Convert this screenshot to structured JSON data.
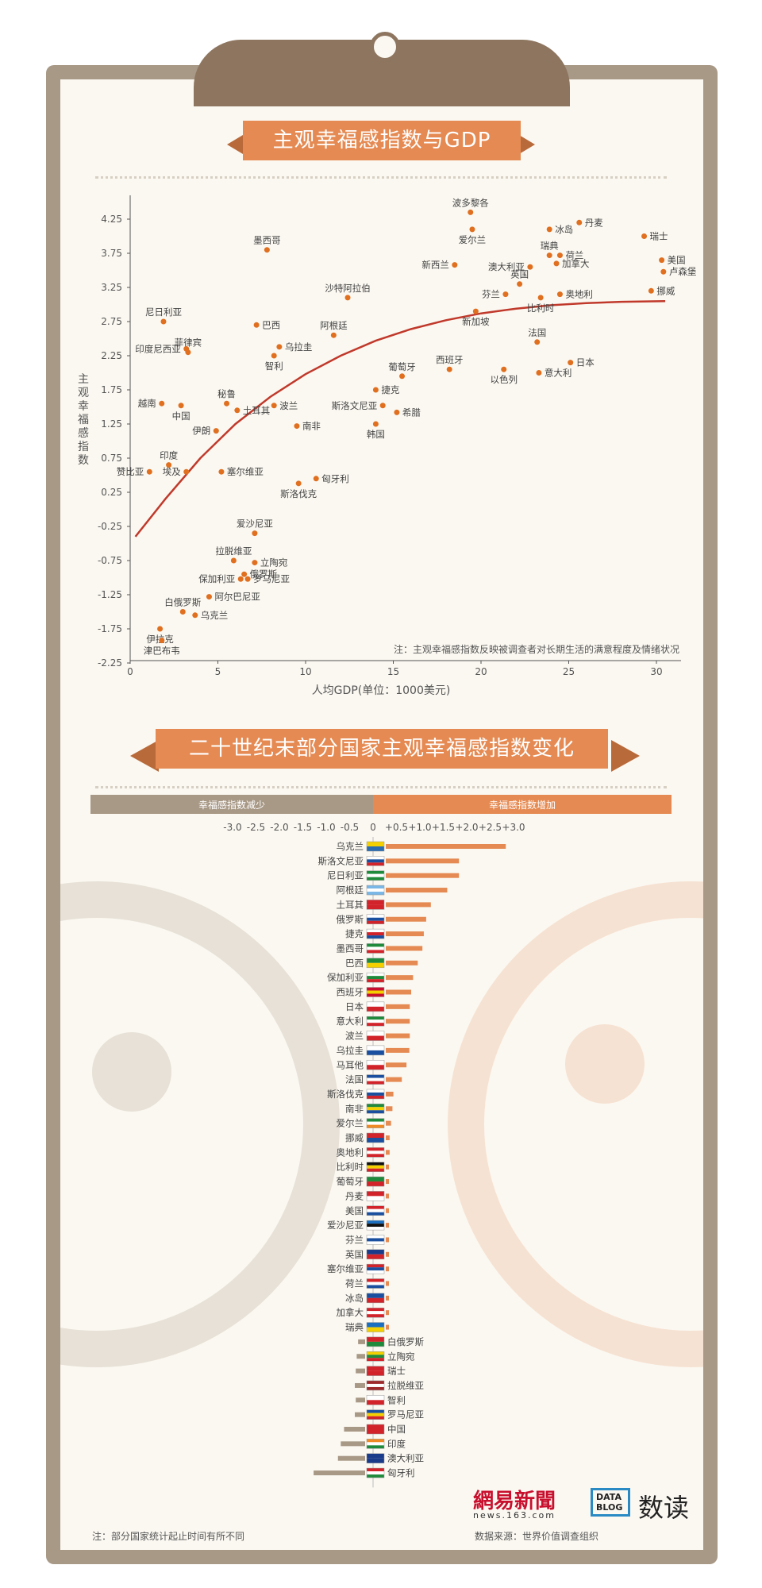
{
  "scatter_title": "主观幸福感指数与GDP",
  "bar_title": "二十世纪末部分国家主观幸福感指数变化",
  "colors": {
    "accent": "#e58a52",
    "point": "#e07020",
    "curve": "#c0392b",
    "frame": "#a89886",
    "bar_pos": "#e58a52",
    "bar_neg": "#a89886"
  },
  "chart_data": [
    {
      "type": "scatter",
      "title": "主观幸福感指数与GDP",
      "xlabel": "人均GDP(单位：1000美元)",
      "ylabel": "主观幸福感指数",
      "xlim": [
        0,
        31.5
      ],
      "ylim": [
        -2.25,
        4.5
      ],
      "xticks": [
        0,
        5,
        10,
        15,
        20,
        25,
        30
      ],
      "yticks": [
        4.25,
        3.75,
        3.25,
        2.75,
        2.25,
        1.75,
        1.25,
        0.75,
        0.25,
        -0.25,
        -0.75,
        -1.25,
        -1.75,
        -2.25
      ],
      "note": "注：主观幸福感指数反映被调查者对长期生活的满意程度及情绪状况",
      "trend_curve": [
        [
          0.3,
          -0.4
        ],
        [
          2,
          0.15
        ],
        [
          4,
          0.75
        ],
        [
          6,
          1.25
        ],
        [
          8,
          1.65
        ],
        [
          10,
          1.98
        ],
        [
          12,
          2.25
        ],
        [
          14,
          2.47
        ],
        [
          16,
          2.64
        ],
        [
          18,
          2.77
        ],
        [
          20,
          2.87
        ],
        [
          22,
          2.94
        ],
        [
          24,
          2.99
        ],
        [
          26,
          3.02
        ],
        [
          28,
          3.04
        ],
        [
          30.5,
          3.05
        ]
      ],
      "points": [
        {
          "name": "波多黎各",
          "x": 19.4,
          "y": 4.35
        },
        {
          "name": "丹麦",
          "x": 25.6,
          "y": 4.2
        },
        {
          "name": "冰岛",
          "x": 23.9,
          "y": 4.1
        },
        {
          "name": "爱尔兰",
          "x": 19.5,
          "y": 4.1
        },
        {
          "name": "瑞士",
          "x": 29.3,
          "y": 4.0
        },
        {
          "name": "墨西哥",
          "x": 7.8,
          "y": 3.8
        },
        {
          "name": "瑞典",
          "x": 23.9,
          "y": 3.72
        },
        {
          "name": "荷兰",
          "x": 24.5,
          "y": 3.72
        },
        {
          "name": "美国",
          "x": 30.3,
          "y": 3.65
        },
        {
          "name": "新西兰",
          "x": 18.5,
          "y": 3.58
        },
        {
          "name": "澳大利亚",
          "x": 22.8,
          "y": 3.55
        },
        {
          "name": "加拿大",
          "x": 24.3,
          "y": 3.6
        },
        {
          "name": "卢森堡",
          "x": 30.4,
          "y": 3.48
        },
        {
          "name": "英国",
          "x": 22.2,
          "y": 3.3
        },
        {
          "name": "沙特阿拉伯",
          "x": 12.4,
          "y": 3.1
        },
        {
          "name": "芬兰",
          "x": 21.4,
          "y": 3.15
        },
        {
          "name": "奥地利",
          "x": 24.5,
          "y": 3.15
        },
        {
          "name": "比利时",
          "x": 23.4,
          "y": 3.1
        },
        {
          "name": "挪威",
          "x": 29.7,
          "y": 3.2
        },
        {
          "name": "新加坡",
          "x": 19.7,
          "y": 2.9
        },
        {
          "name": "尼日利亚",
          "x": 1.9,
          "y": 2.75
        },
        {
          "name": "巴西",
          "x": 7.2,
          "y": 2.7
        },
        {
          "name": "阿根廷",
          "x": 11.6,
          "y": 2.55
        },
        {
          "name": "法国",
          "x": 23.2,
          "y": 2.45
        },
        {
          "name": "菲律宾",
          "x": 3.3,
          "y": 2.3
        },
        {
          "name": "乌拉圭",
          "x": 8.5,
          "y": 2.38
        },
        {
          "name": "印度尼西亚",
          "x": 3.2,
          "y": 2.35
        },
        {
          "name": "智利",
          "x": 8.2,
          "y": 2.25
        },
        {
          "name": "西班牙",
          "x": 18.2,
          "y": 2.05
        },
        {
          "name": "日本",
          "x": 25.1,
          "y": 2.15
        },
        {
          "name": "以色列",
          "x": 21.3,
          "y": 2.05
        },
        {
          "name": "意大利",
          "x": 23.3,
          "y": 2.0
        },
        {
          "name": "葡萄牙",
          "x": 15.5,
          "y": 1.95
        },
        {
          "name": "捷克",
          "x": 14.0,
          "y": 1.75
        },
        {
          "name": "秘鲁",
          "x": 5.5,
          "y": 1.55
        },
        {
          "name": "越南",
          "x": 1.8,
          "y": 1.55
        },
        {
          "name": "中国",
          "x": 2.9,
          "y": 1.52
        },
        {
          "name": "波兰",
          "x": 8.2,
          "y": 1.52
        },
        {
          "name": "斯洛文尼亚",
          "x": 14.4,
          "y": 1.52
        },
        {
          "name": "土耳其",
          "x": 6.1,
          "y": 1.45
        },
        {
          "name": "希腊",
          "x": 15.2,
          "y": 1.42
        },
        {
          "name": "伊朗",
          "x": 4.9,
          "y": 1.15
        },
        {
          "name": "南非",
          "x": 9.5,
          "y": 1.22
        },
        {
          "name": "韩国",
          "x": 14.0,
          "y": 1.25
        },
        {
          "name": "印度",
          "x": 2.2,
          "y": 0.65
        },
        {
          "name": "赞比亚",
          "x": 1.1,
          "y": 0.55
        },
        {
          "name": "埃及",
          "x": 3.2,
          "y": 0.55
        },
        {
          "name": "塞尔维亚",
          "x": 5.2,
          "y": 0.55
        },
        {
          "name": "匈牙利",
          "x": 10.6,
          "y": 0.45
        },
        {
          "name": "斯洛伐克",
          "x": 9.6,
          "y": 0.38
        },
        {
          "name": "爱沙尼亚",
          "x": 7.1,
          "y": -0.35
        },
        {
          "name": "拉脱维亚",
          "x": 5.9,
          "y": -0.75
        },
        {
          "name": "立陶宛",
          "x": 7.1,
          "y": -0.78
        },
        {
          "name": "俄罗斯",
          "x": 6.5,
          "y": -0.95
        },
        {
          "name": "保加利亚",
          "x": 6.3,
          "y": -1.02
        },
        {
          "name": "罗马尼亚",
          "x": 6.7,
          "y": -1.02
        },
        {
          "name": "阿尔巴尼亚",
          "x": 4.5,
          "y": -1.28
        },
        {
          "name": "白俄罗斯",
          "x": 3.0,
          "y": -1.5
        },
        {
          "name": "乌克兰",
          "x": 3.7,
          "y": -1.55
        },
        {
          "name": "伊拉克",
          "x": 1.7,
          "y": -1.75
        },
        {
          "name": "津巴布韦",
          "x": 1.8,
          "y": -1.92
        }
      ]
    },
    {
      "type": "bar",
      "title": "二十世纪末部分国家主观幸福感指数变化",
      "neg_header": "幸福感指数减少",
      "pos_header": "幸福感指数增加",
      "xlim": [
        -3.0,
        3.0
      ],
      "xticks": [
        "-3.0",
        "-2.5",
        "-2.0",
        "-1.5",
        "-1.0",
        "-0.5",
        "0",
        "+0.5",
        "+1.0",
        "+1.5",
        "+2.0",
        "+2.5",
        "+3.0"
      ],
      "categories": [
        "乌克兰",
        "斯洛文尼亚",
        "尼日利亚",
        "阿根廷",
        "土耳其",
        "俄罗斯",
        "捷克",
        "墨西哥",
        "巴西",
        "保加利亚",
        "西班牙",
        "日本",
        "意大利",
        "波兰",
        "乌拉圭",
        "马耳他",
        "法国",
        "斯洛伐克",
        "南非",
        "爱尔兰",
        "挪威",
        "奥地利",
        "比利时",
        "葡萄牙",
        "丹麦",
        "美国",
        "爱沙尼亚",
        "芬兰",
        "英国",
        "塞尔维亚",
        "荷兰",
        "冰岛",
        "加拿大",
        "瑞典",
        "白俄罗斯",
        "立陶宛",
        "瑞士",
        "拉脱维亚",
        "智利",
        "罗马尼亚",
        "中国",
        "印度",
        "澳大利亚",
        "匈牙利"
      ],
      "values": [
        2.8,
        1.8,
        1.8,
        1.55,
        1.2,
        1.1,
        1.05,
        1.02,
        0.92,
        0.82,
        0.78,
        0.75,
        0.75,
        0.75,
        0.74,
        0.68,
        0.58,
        0.4,
        0.38,
        0.35,
        0.32,
        0.32,
        0.3,
        0.28,
        0.28,
        0.25,
        0.18,
        0.15,
        0.12,
        0.12,
        0.1,
        0.1,
        0.08,
        0.07,
        -0.15,
        -0.18,
        -0.2,
        -0.22,
        -0.2,
        -0.22,
        -0.45,
        -0.52,
        -0.58,
        -1.1
      ],
      "flag_colors": [
        [
          "#f4d000",
          "#2b6cb0"
        ],
        [
          "#ffffff",
          "#1a4fa0",
          "#d2232a"
        ],
        [
          "#1f8a3b",
          "#ffffff",
          "#1f8a3b"
        ],
        [
          "#7ab6e6",
          "#ffffff",
          "#7ab6e6"
        ],
        [
          "#d2232a",
          "#d2232a"
        ],
        [
          "#ffffff",
          "#1a4fa0",
          "#d2232a"
        ],
        [
          "#ffffff",
          "#d2232a",
          "#1a4fa0"
        ],
        [
          "#1f8a3b",
          "#ffffff",
          "#d2232a"
        ],
        [
          "#1f8a3b",
          "#f4d000"
        ],
        [
          "#ffffff",
          "#1f8a3b",
          "#d2232a"
        ],
        [
          "#c8102e",
          "#f4d000",
          "#c8102e"
        ],
        [
          "#ffffff",
          "#d2232a"
        ],
        [
          "#1f8a3b",
          "#ffffff",
          "#d2232a"
        ],
        [
          "#ffffff",
          "#d2232a"
        ],
        [
          "#ffffff",
          "#1a4fa0"
        ],
        [
          "#ffffff",
          "#d2232a"
        ],
        [
          "#1a4fa0",
          "#ffffff",
          "#d2232a"
        ],
        [
          "#ffffff",
          "#1a4fa0",
          "#d2232a"
        ],
        [
          "#1f8a3b",
          "#f4d000",
          "#1a4fa0"
        ],
        [
          "#1f8a3b",
          "#ffffff",
          "#f08a24"
        ],
        [
          "#d2232a",
          "#1a4fa0"
        ],
        [
          "#d2232a",
          "#ffffff",
          "#d2232a"
        ],
        [
          "#111111",
          "#f4d000",
          "#d2232a"
        ],
        [
          "#1f8a3b",
          "#d2232a"
        ],
        [
          "#d2232a",
          "#ffffff"
        ],
        [
          "#d2232a",
          "#ffffff",
          "#1a4fa0"
        ],
        [
          "#1a6fc0",
          "#111111",
          "#ffffff"
        ],
        [
          "#ffffff",
          "#1a4fa0",
          "#ffffff"
        ],
        [
          "#1a3a8a",
          "#d2232a"
        ],
        [
          "#d2232a",
          "#1a4fa0",
          "#ffffff"
        ],
        [
          "#d2232a",
          "#ffffff",
          "#1a4fa0"
        ],
        [
          "#1a4fa0",
          "#d2232a"
        ],
        [
          "#d2232a",
          "#ffffff",
          "#d2232a"
        ],
        [
          "#1a6fc0",
          "#f4d000"
        ],
        [
          "#d2232a",
          "#1f8a3b"
        ],
        [
          "#f4d000",
          "#1f8a3b",
          "#d2232a"
        ],
        [
          "#d2232a",
          "#d2232a"
        ],
        [
          "#9e2a2b",
          "#ffffff",
          "#9e2a2b"
        ],
        [
          "#ffffff",
          "#d2232a"
        ],
        [
          "#1a4fa0",
          "#f4d000",
          "#d2232a"
        ],
        [
          "#d2232a",
          "#d2232a"
        ],
        [
          "#f08a24",
          "#ffffff",
          "#1f8a3b"
        ],
        [
          "#1a3a8a",
          "#1a3a8a"
        ],
        [
          "#d2232a",
          "#ffffff",
          "#1f8a3b"
        ]
      ]
    }
  ],
  "footer": {
    "note": "注：部分国家统计起止时间有所不同",
    "source": "数据来源：世界价值调查组织",
    "logo_main": "網易新聞",
    "logo_sub": "news.163.com",
    "datablog": "DATA BLOG",
    "shudu": "数读"
  }
}
